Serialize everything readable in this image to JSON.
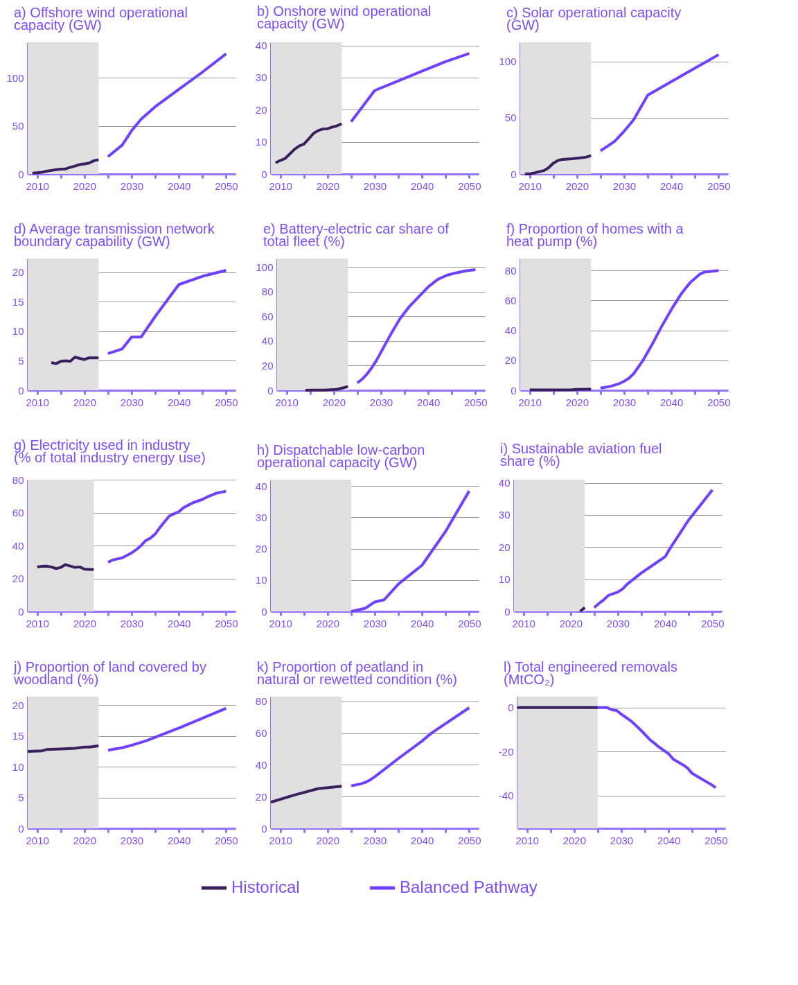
{
  "chart_data": [
    {
      "type": "line",
      "title": "a) Offshore wind operational capacity (GW)",
      "xlim": [
        2008,
        2052
      ],
      "xticks": [
        2010,
        {
          "value": 2015,
          "label": null
        },
        2020,
        {
          "value": 2025,
          "label": null
        },
        2030,
        {
          "value": 2035,
          "label": null
        },
        2040,
        {
          "value": 2045,
          "label": null
        },
        2050
      ],
      "ylim": [
        0,
        137
      ],
      "yticks": [
        0,
        50,
        100
      ],
      "grid": "y",
      "bands": [
        {
          "axis": "x",
          "from": 2008,
          "to": 2023,
          "color": "#e0e0e0"
        }
      ],
      "series": [
        {
          "color": "#3b1f5c",
          "x": [
            2009,
            2010,
            2011,
            2012,
            2013,
            2014,
            2015,
            2016,
            2017,
            2018,
            2019,
            2020,
            2021,
            2022,
            2023
          ],
          "values": [
            0.9,
            1.3,
            1.8,
            2.9,
            3.7,
            4.5,
            5.1,
            5.3,
            6.9,
            8.2,
            9.9,
            10.4,
            11.3,
            13.8,
            14.8
          ]
        },
        {
          "color": "#7040ff",
          "x": [
            2025,
            2028,
            2030,
            2032,
            2035,
            2040,
            2045,
            2050
          ],
          "values": [
            18,
            30,
            45,
            57,
            70,
            88,
            106,
            125
          ]
        }
      ]
    },
    {
      "type": "line",
      "title": "b) Onshore wind operational capacity (GW)",
      "xlim": [
        2008,
        2052
      ],
      "xticks": [
        2010,
        {
          "value": 2015,
          "label": null
        },
        2020,
        {
          "value": 2025,
          "label": null
        },
        2030,
        {
          "value": 2035,
          "label": null
        },
        2040,
        {
          "value": 2045,
          "label": null
        },
        2050
      ],
      "ylim": [
        0,
        41
      ],
      "yticks": [
        0,
        10,
        20,
        30,
        40
      ],
      "grid": "y",
      "bands": [
        {
          "axis": "x",
          "from": 2008,
          "to": 2023,
          "color": "#e0e0e0"
        }
      ],
      "series": [
        {
          "color": "#3b1f5c",
          "x": [
            2009,
            2010,
            2011,
            2012,
            2013,
            2014,
            2015,
            2016,
            2017,
            2018,
            2019,
            2020,
            2021,
            2022,
            2023
          ],
          "values": [
            3.5,
            4.2,
            4.8,
            6.2,
            7.7,
            8.7,
            9.3,
            10.9,
            12.6,
            13.5,
            14.0,
            14.1,
            14.6,
            15.0,
            15.6
          ]
        },
        {
          "color": "#7040ff",
          "x": [
            2025,
            2030,
            2035,
            2040,
            2045,
            2050
          ],
          "values": [
            16.3,
            26,
            29,
            32,
            35,
            37.5
          ]
        }
      ]
    },
    {
      "type": "line",
      "title": "c) Solar operational capacity (GW)",
      "xlim": [
        2008,
        2052
      ],
      "xticks": [
        2010,
        {
          "value": 2015,
          "label": null
        },
        2020,
        {
          "value": 2025,
          "label": null
        },
        2030,
        {
          "value": 2035,
          "label": null
        },
        2040,
        {
          "value": 2045,
          "label": null
        },
        2050
      ],
      "ylim": [
        0,
        117
      ],
      "yticks": [
        0,
        50,
        100
      ],
      "grid": "y",
      "bands": [
        {
          "axis": "x",
          "from": 2008,
          "to": 2023,
          "color": "#e0e0e0"
        }
      ],
      "series": [
        {
          "color": "#3b1f5c",
          "x": [
            2009,
            2010,
            2011,
            2012,
            2013,
            2014,
            2015,
            2016,
            2017,
            2018,
            2019,
            2020,
            2021,
            2022,
            2023
          ],
          "values": [
            0,
            0.1,
            1,
            2,
            3,
            5.5,
            9.5,
            12,
            13,
            13.3,
            13.6,
            14,
            14.4,
            15,
            16.4
          ]
        },
        {
          "color": "#7040ff",
          "x": [
            2025,
            2028,
            2030,
            2032,
            2035,
            2040,
            2045,
            2050
          ],
          "values": [
            20.5,
            29,
            38,
            48,
            70,
            82,
            94,
            106
          ]
        }
      ]
    },
    {
      "type": "line",
      "title": "d) Average transmission network boundary capability (GW)",
      "xlim": [
        2008,
        2052
      ],
      "xticks": [
        2010,
        {
          "value": 2015,
          "label": null
        },
        2020,
        {
          "value": 2025,
          "label": null
        },
        2030,
        {
          "value": 2035,
          "label": null
        },
        2040,
        {
          "value": 2045,
          "label": null
        },
        2050
      ],
      "ylim": [
        0,
        22.3
      ],
      "yticks": [
        0,
        5,
        10,
        15,
        20
      ],
      "grid": "y",
      "bands": [
        {
          "axis": "x",
          "from": 2008,
          "to": 2023,
          "color": "#e0e0e0"
        }
      ],
      "series": [
        {
          "color": "#3b1f5c",
          "x": [
            2013,
            2014,
            2015,
            2016,
            2017,
            2018,
            2019,
            2020,
            2021,
            2022,
            2023
          ],
          "values": [
            4.7,
            4.5,
            4.9,
            5.0,
            4.9,
            5.6,
            5.4,
            5.2,
            5.5,
            5.5,
            5.5
          ]
        },
        {
          "color": "#7040ff",
          "x": [
            2025,
            2028,
            2030,
            2032,
            2035,
            2040,
            2045,
            2050
          ],
          "values": [
            6.2,
            7.0,
            9,
            9,
            12.5,
            17.9,
            19.3,
            20.3
          ]
        }
      ]
    },
    {
      "type": "line",
      "title": "e) Battery-electric car share of total fleet (%)",
      "xlim": [
        2008,
        2052
      ],
      "xticks": [
        2010,
        {
          "value": 2015,
          "label": null
        },
        2020,
        {
          "value": 2025,
          "label": null
        },
        2030,
        {
          "value": 2035,
          "label": null
        },
        2040,
        {
          "value": 2045,
          "label": null
        },
        2050
      ],
      "ylim": [
        0,
        107
      ],
      "yticks": [
        0,
        20,
        40,
        60,
        80,
        100
      ],
      "grid": "y",
      "bands": [
        {
          "axis": "x",
          "from": 2008,
          "to": 2023,
          "color": "#e0e0e0"
        }
      ],
      "series": [
        {
          "color": "#3b1f5c",
          "x": [
            2014,
            2016,
            2018,
            2020,
            2021,
            2022,
            2023
          ],
          "values": [
            0,
            0.1,
            0.2,
            0.5,
            1,
            2,
            3
          ]
        },
        {
          "color": "#7040ff",
          "x": [
            2025,
            2026,
            2027,
            2028,
            2029,
            2030,
            2032,
            2034,
            2036,
            2038,
            2040,
            2042,
            2044,
            2046,
            2048,
            2050
          ],
          "values": [
            6,
            9,
            13,
            18,
            24,
            31,
            45,
            58,
            68,
            76,
            84,
            90,
            93.5,
            95.5,
            97,
            98
          ]
        }
      ]
    },
    {
      "type": "line",
      "title": "f) Proportion of homes with a heat pump (%)",
      "xlim": [
        2008,
        2052
      ],
      "xticks": [
        2010,
        {
          "value": 2015,
          "label": null
        },
        2020,
        {
          "value": 2025,
          "label": null
        },
        2030,
        {
          "value": 2035,
          "label": null
        },
        2040,
        {
          "value": 2045,
          "label": null
        },
        2050
      ],
      "ylim": [
        0,
        88
      ],
      "yticks": [
        0,
        20,
        40,
        60,
        80
      ],
      "grid": "y",
      "bands": [
        {
          "axis": "x",
          "from": 2008,
          "to": 2023,
          "color": "#e0e0e0"
        }
      ],
      "series": [
        {
          "color": "#3b1f5c",
          "x": [
            2010,
            2015,
            2019,
            2020,
            2023
          ],
          "values": [
            0.2,
            0.2,
            0.3,
            0.6,
            0.7
          ]
        },
        {
          "color": "#7040ff",
          "x": [
            2025,
            2027,
            2029,
            2030,
            2031,
            2032,
            2034,
            2036,
            2038,
            2040,
            2042,
            2044,
            2046,
            2047,
            2050
          ],
          "values": [
            1.5,
            2.5,
            4.5,
            6,
            8,
            11,
            20,
            31,
            43,
            54,
            64,
            72,
            77.5,
            79,
            80
          ]
        }
      ]
    },
    {
      "type": "line",
      "title": "g) Electricity used in industry (% of total industry energy use)",
      "xlim": [
        2008,
        2052
      ],
      "xticks": [
        2010,
        {
          "value": 2015,
          "label": null
        },
        2020,
        {
          "value": 2025,
          "label": null
        },
        2030,
        {
          "value": 2035,
          "label": null
        },
        2040,
        {
          "value": 2045,
          "label": null
        },
        2050
      ],
      "ylim": [
        0,
        80
      ],
      "yticks": [
        0,
        20,
        40,
        60,
        80
      ],
      "grid": "y",
      "bands": [
        {
          "axis": "x",
          "from": 2008,
          "to": 2022,
          "color": "#e0e0e0"
        }
      ],
      "series": [
        {
          "color": "#3b1f5c",
          "x": [
            2010,
            2011,
            2012,
            2013,
            2014,
            2015,
            2016,
            2017,
            2018,
            2019,
            2020,
            2021,
            2022
          ],
          "values": [
            27,
            27.4,
            27.5,
            27,
            26,
            26.7,
            28.4,
            27.5,
            26.7,
            27,
            25.7,
            25.5,
            25.5
          ]
        },
        {
          "color": "#7040ff",
          "x": [
            2025,
            2026,
            2028,
            2030,
            2031,
            2032,
            2033,
            2034,
            2035,
            2036,
            2038,
            2040,
            2041,
            2043,
            2045,
            2046,
            2048,
            2050
          ],
          "values": [
            29.8,
            31.2,
            32.5,
            35.5,
            37.5,
            40,
            43,
            44.5,
            47,
            51,
            58,
            60.5,
            63,
            66,
            68,
            69.5,
            71.8,
            73
          ]
        }
      ]
    },
    {
      "type": "line",
      "title": "h) Dispatchable low-carbon operational capacity (GW)",
      "xlim": [
        2008,
        2052
      ],
      "xticks": [
        2010,
        {
          "value": 2015,
          "label": null
        },
        2020,
        {
          "value": 2025,
          "label": null
        },
        2030,
        {
          "value": 2035,
          "label": null
        },
        2040,
        {
          "value": 2045,
          "label": null
        },
        2050
      ],
      "ylim": [
        0,
        42
      ],
      "yticks": [
        0,
        10,
        20,
        30,
        40
      ],
      "grid": "y",
      "bands": [
        {
          "axis": "x",
          "from": 2008,
          "to": 2025,
          "color": "#e0e0e0"
        }
      ],
      "series": [
        {
          "color": "#7040ff",
          "x": [
            2025,
            2028,
            2030,
            2032,
            2035,
            2040,
            2045,
            2050
          ],
          "values": [
            0,
            1,
            3,
            3.7,
            8.7,
            14.7,
            25.5,
            38.4
          ]
        }
      ]
    },
    {
      "type": "line",
      "title": "i) Sustainable aviation fuel share (%)",
      "xlim": [
        2008,
        2052
      ],
      "xticks": [
        2010,
        {
          "value": 2015,
          "label": null
        },
        2020,
        {
          "value": 2025,
          "label": null
        },
        2030,
        {
          "value": 2035,
          "label": null
        },
        2040,
        {
          "value": 2045,
          "label": null
        },
        2050
      ],
      "ylim": [
        0,
        41
      ],
      "yticks": [
        0,
        10,
        20,
        30,
        40
      ],
      "grid": "y",
      "bands": [
        {
          "axis": "x",
          "from": 2008,
          "to": 2023,
          "color": "#e0e0e0"
        }
      ],
      "series": [
        {
          "color": "#3b1f5c",
          "x": [
            2022,
            2023
          ],
          "values": [
            0,
            1.2
          ]
        },
        {
          "color": "#7040ff",
          "x": [
            2025,
            2026,
            2027,
            2028,
            2030,
            2031,
            2032,
            2035,
            2038,
            2040,
            2041,
            2045,
            2050
          ],
          "values": [
            1.2,
            2.5,
            3.6,
            5,
            6,
            7,
            8.5,
            12,
            15,
            17,
            19.5,
            28.5,
            37.8
          ]
        }
      ]
    },
    {
      "type": "line",
      "title": "j) Proportion of land covered by woodland (%)",
      "xlim": [
        2008,
        2052
      ],
      "xticks": [
        2010,
        {
          "value": 2015,
          "label": null
        },
        2020,
        {
          "value": 2025,
          "label": null
        },
        2030,
        {
          "value": 2035,
          "label": null
        },
        2040,
        {
          "value": 2045,
          "label": null
        },
        2050
      ],
      "ylim": [
        0,
        21.4
      ],
      "yticks": [
        0,
        5,
        10,
        15,
        20
      ],
      "grid": "y",
      "bands": [
        {
          "axis": "x",
          "from": 2008,
          "to": 2023,
          "color": "#e0e0e0"
        }
      ],
      "series": [
        {
          "color": "#3b1f5c",
          "x": [
            2008,
            2011,
            2012,
            2015,
            2018,
            2020,
            2021,
            2023
          ],
          "values": [
            12.5,
            12.6,
            12.8,
            12.9,
            13.0,
            13.2,
            13.2,
            13.4
          ]
        },
        {
          "color": "#7040ff",
          "x": [
            2025,
            2028,
            2030,
            2033,
            2035,
            2040,
            2045,
            2050
          ],
          "values": [
            12.7,
            13.1,
            13.5,
            14.2,
            14.8,
            16.3,
            17.9,
            19.5
          ]
        }
      ]
    },
    {
      "type": "line",
      "title": "k) Proportion of peatland in natural or rewetted condition (%)",
      "xlim": [
        2008,
        2052
      ],
      "xticks": [
        2010,
        {
          "value": 2015,
          "label": null
        },
        2020,
        {
          "value": 2025,
          "label": null
        },
        2030,
        {
          "value": 2035,
          "label": null
        },
        2040,
        {
          "value": 2045,
          "label": null
        },
        2050
      ],
      "ylim": [
        0,
        83
      ],
      "yticks": [
        0,
        20,
        40,
        60,
        80
      ],
      "grid": "y",
      "bands": [
        {
          "axis": "x",
          "from": 2008,
          "to": 2023,
          "color": "#e0e0e0"
        }
      ],
      "series": [
        {
          "color": "#3b1f5c",
          "x": [
            2008,
            2013,
            2018,
            2023
          ],
          "values": [
            16.5,
            21,
            25,
            26.5
          ]
        },
        {
          "color": "#7040ff",
          "x": [
            2025,
            2027,
            2028,
            2029,
            2030,
            2035,
            2040,
            2042,
            2045,
            2050
          ],
          "values": [
            26.8,
            28,
            29,
            30.5,
            32.5,
            44,
            55,
            60,
            66,
            76
          ]
        }
      ]
    },
    {
      "type": "line",
      "title": "l) Total engineered removals (MtCO₂)",
      "xlim": [
        2008,
        2052
      ],
      "xticks": [
        2010,
        {
          "value": 2015,
          "label": null
        },
        2020,
        {
          "value": 2025,
          "label": null
        },
        2030,
        {
          "value": 2035,
          "label": null
        },
        2040,
        {
          "value": 2045,
          "label": null
        },
        2050
      ],
      "ylim": [
        -55,
        5
      ],
      "yticks": [
        -40,
        -20,
        0
      ],
      "grid": "y",
      "legend": "bottom",
      "bands": [
        {
          "axis": "x",
          "from": 2008,
          "to": 2025,
          "color": "#e0e0e0"
        }
      ],
      "series": [
        {
          "name": "Historical",
          "color": "#3b1f5c",
          "x": [
            2008,
            2025
          ],
          "values": [
            0,
            0
          ]
        },
        {
          "name": "Balanced Pathway",
          "color": "#7040ff",
          "x": [
            2025,
            2027,
            2028,
            2029,
            2030,
            2032,
            2034,
            2036,
            2038,
            2040,
            2041,
            2043,
            2044,
            2045,
            2047,
            2049,
            2050
          ],
          "values": [
            0,
            0,
            -1,
            -1.3,
            -3,
            -6,
            -10,
            -14.5,
            -18,
            -21,
            -23.5,
            -26,
            -27.5,
            -30,
            -32.5,
            -35,
            -36.5
          ]
        }
      ]
    }
  ]
}
